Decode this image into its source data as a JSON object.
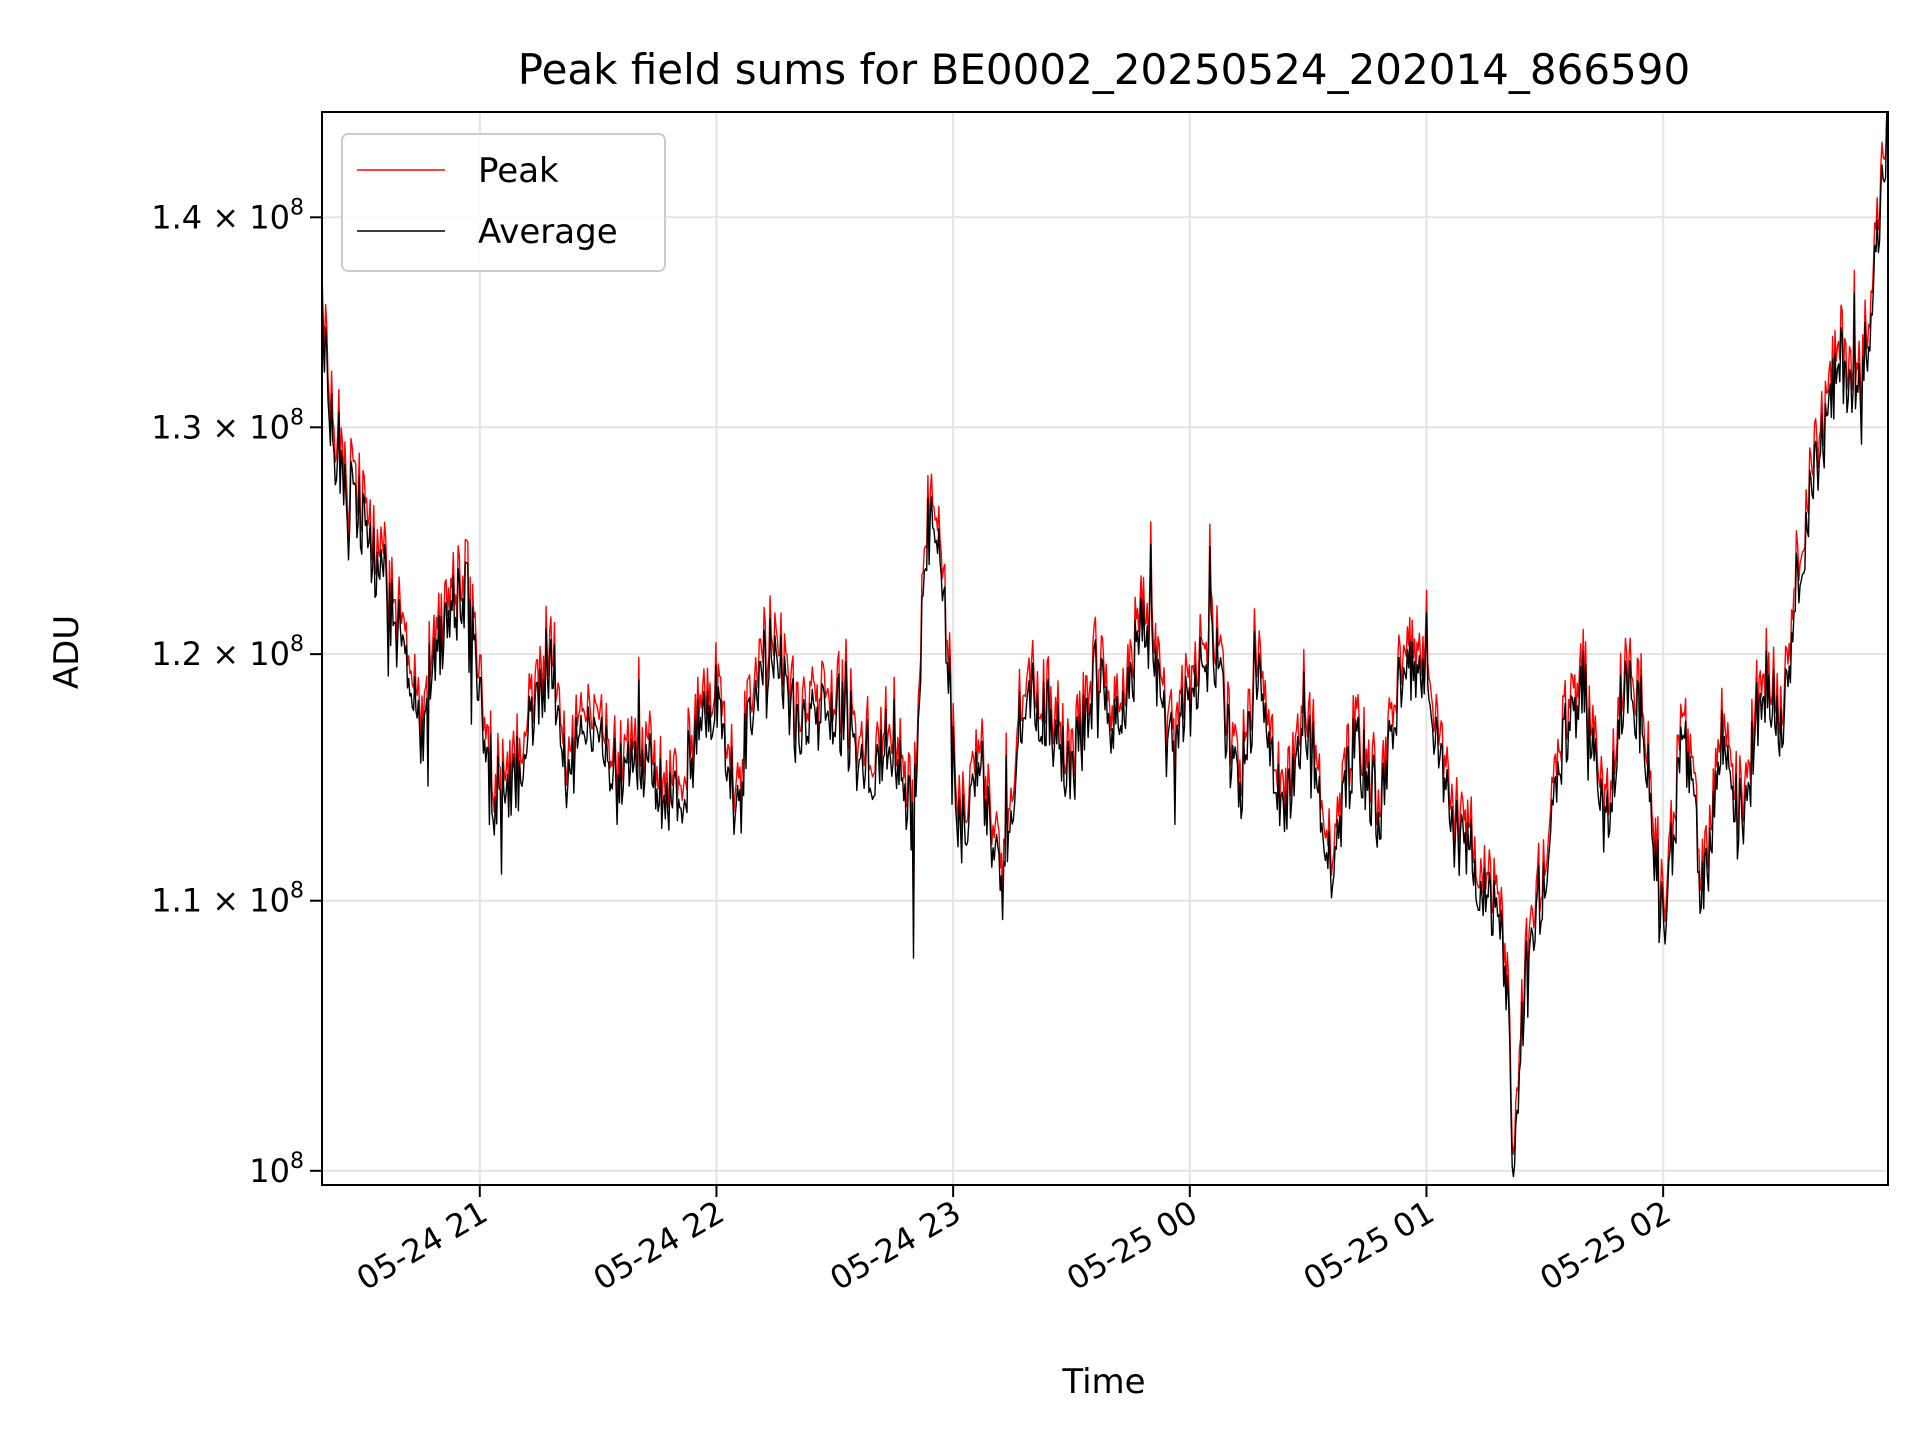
{
  "chart_data": {
    "type": "line",
    "title": "Peak field sums for BE0002_20250524_202014_866590",
    "xlabel": "Time",
    "ylabel": "ADU",
    "y_scale": "log",
    "xlim": [
      "2025-05-24 20:20",
      "2025-05-25 02:57"
    ],
    "ylim": [
      99500000,
      145300000
    ],
    "x_ticks": [
      {
        "value": "2025-05-24 21:00",
        "label": "05-24 21"
      },
      {
        "value": "2025-05-24 22:00",
        "label": "05-24 22"
      },
      {
        "value": "2025-05-24 23:00",
        "label": "05-24 23"
      },
      {
        "value": "2025-05-25 00:00",
        "label": "05-25 00"
      },
      {
        "value": "2025-05-25 01:00",
        "label": "05-25 01"
      },
      {
        "value": "2025-05-25 02:00",
        "label": "05-25 02"
      }
    ],
    "y_ticks": [
      {
        "value": 100000000,
        "base": "10",
        "exp": "8"
      },
      {
        "value": 110000000,
        "base": "1.1 × 10",
        "exp": "8"
      },
      {
        "value": 120000000,
        "base": "1.2 × 10",
        "exp": "8"
      },
      {
        "value": 130000000,
        "base": "1.3 × 10",
        "exp": "8"
      },
      {
        "value": 140000000,
        "base": "1.4 × 10",
        "exp": "8"
      }
    ],
    "grid": true,
    "legend": {
      "position": "upper-left"
    },
    "series": [
      {
        "name": "Peak",
        "color": "#ff0000",
        "offset_ratio": 1.008
      },
      {
        "name": "Average",
        "color": "#000000",
        "offset_ratio": 1.0
      }
    ],
    "x": [
      "2025-05-24 20:20",
      "2025-05-24 20:22",
      "2025-05-24 20:24",
      "2025-05-24 20:27",
      "2025-05-24 20:30",
      "2025-05-24 20:33",
      "2025-05-24 20:36",
      "2025-05-24 20:39",
      "2025-05-24 20:42",
      "2025-05-24 20:45",
      "2025-05-24 20:48",
      "2025-05-24 20:51",
      "2025-05-24 20:54",
      "2025-05-24 20:57",
      "2025-05-24 21:00",
      "2025-05-24 21:03",
      "2025-05-24 21:06",
      "2025-05-24 21:10",
      "2025-05-24 21:14",
      "2025-05-24 21:18",
      "2025-05-24 21:22",
      "2025-05-24 21:26",
      "2025-05-24 21:30",
      "2025-05-24 21:35",
      "2025-05-24 21:40",
      "2025-05-24 21:45",
      "2025-05-24 21:50",
      "2025-05-24 21:55",
      "2025-05-24 22:00",
      "2025-05-24 22:05",
      "2025-05-24 22:10",
      "2025-05-24 22:15",
      "2025-05-24 22:20",
      "2025-05-24 22:25",
      "2025-05-24 22:30",
      "2025-05-24 22:35",
      "2025-05-24 22:40",
      "2025-05-24 22:45",
      "2025-05-24 22:50",
      "2025-05-24 22:53",
      "2025-05-24 22:55",
      "2025-05-24 22:58",
      "2025-05-24 23:02",
      "2025-05-24 23:07",
      "2025-05-24 23:12",
      "2025-05-24 23:18",
      "2025-05-24 23:24",
      "2025-05-24 23:30",
      "2025-05-24 23:36",
      "2025-05-24 23:42",
      "2025-05-24 23:48",
      "2025-05-24 23:54",
      "2025-05-25 00:00",
      "2025-05-25 00:06",
      "2025-05-25 00:12",
      "2025-05-25 00:18",
      "2025-05-25 00:24",
      "2025-05-25 00:30",
      "2025-05-25 00:36",
      "2025-05-25 00:42",
      "2025-05-25 00:48",
      "2025-05-25 00:54",
      "2025-05-25 01:00",
      "2025-05-25 01:06",
      "2025-05-25 01:12",
      "2025-05-25 01:16",
      "2025-05-25 01:20",
      "2025-05-25 01:22",
      "2025-05-25 01:25",
      "2025-05-25 01:30",
      "2025-05-25 01:35",
      "2025-05-25 01:40",
      "2025-05-25 01:45",
      "2025-05-25 01:50",
      "2025-05-25 01:55",
      "2025-05-25 02:00",
      "2025-05-25 02:05",
      "2025-05-25 02:10",
      "2025-05-25 02:15",
      "2025-05-25 02:20",
      "2025-05-25 02:25",
      "2025-05-25 02:30",
      "2025-05-25 02:35",
      "2025-05-25 02:40",
      "2025-05-25 02:45",
      "2025-05-25 02:50",
      "2025-05-25 02:54",
      "2025-05-25 02:57"
    ],
    "y": [
      135000000,
      131000000,
      128000000,
      127000000,
      126000000,
      124000000,
      123000000,
      121000000,
      120000000,
      116000000,
      120000000,
      121000000,
      122000000,
      122500000,
      118000000,
      113500000,
      115000000,
      114500000,
      118000000,
      120000000,
      115000000,
      116500000,
      117000000,
      114500000,
      116000000,
      115000000,
      113500000,
      116500000,
      118500000,
      113500000,
      119000000,
      120500000,
      117000000,
      117000000,
      118000000,
      116000000,
      115500000,
      116500000,
      113000000,
      124500000,
      126500000,
      121000000,
      112000000,
      115500000,
      110000000,
      118500000,
      117500000,
      115000000,
      119000000,
      116500000,
      121500000,
      116500000,
      118000000,
      120500000,
      114000000,
      119000000,
      113000000,
      117000000,
      111000000,
      116500000,
      113000000,
      119500000,
      118500000,
      113000000,
      111500000,
      110000000,
      108000000,
      100500000,
      107500000,
      111000000,
      116500000,
      119000000,
      112500000,
      118500000,
      117500000,
      108500000,
      117000000,
      110000000,
      116500000,
      113000000,
      119000000,
      117000000,
      124500000,
      129000000,
      133000000,
      131500000,
      138000000,
      144800000
    ]
  }
}
